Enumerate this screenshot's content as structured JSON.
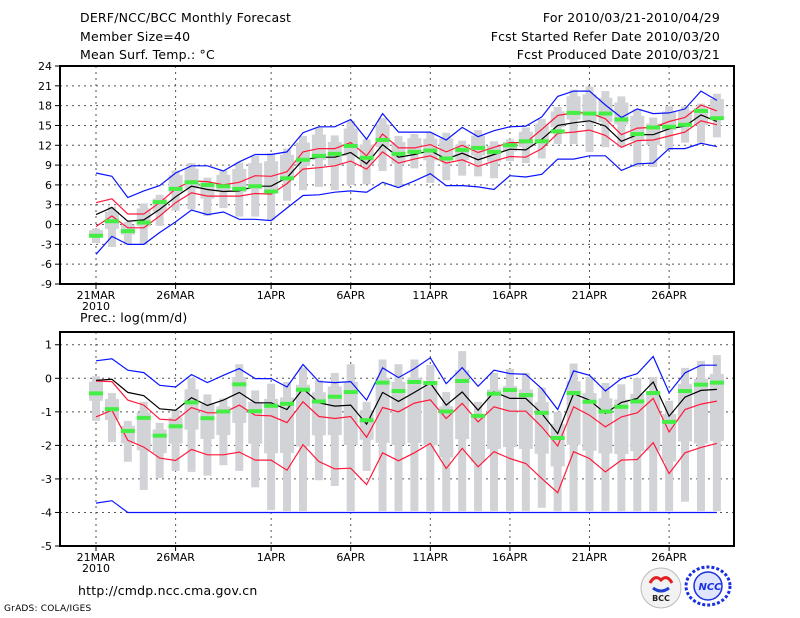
{
  "header": {
    "title": "DERF/NCC/BCC Monthly Forecast",
    "member_size": "Member Size=40",
    "variable": "Mean Surf. Temp.: °C",
    "period": "For 2010/03/21-2010/04/29",
    "start_date": "Fcst Started Refer Date 2010/03/20",
    "produced_date": "Fcst Produced Date 2010/03/21"
  },
  "footer": {
    "url": "http://cmdp.ncc.cma.gov.cn",
    "credit": "GrADS: COLA/IGES",
    "logo_bcc": "BCC",
    "logo_ncc": "NCC"
  },
  "colors": {
    "gray": "#d2d3d7",
    "red": "#ff1a3c",
    "blue": "#0a14ff",
    "black": "#000000",
    "green": "#44ee44"
  },
  "chart_data": [
    {
      "type": "line",
      "title": "Mean Surf. Temp.: °C",
      "ylim": [
        -9,
        24
      ],
      "yticks": [
        24,
        21,
        18,
        15,
        12,
        9,
        6,
        3,
        0,
        -3,
        -6,
        -9
      ],
      "x_ticks": [
        {
          "day": 0,
          "label": "21MAR",
          "sub": "2010"
        },
        {
          "day": 5,
          "label": "26MAR"
        },
        {
          "day": 11,
          "label": "1APR"
        },
        {
          "day": 16,
          "label": "6APR"
        },
        {
          "day": 21,
          "label": "11APR"
        },
        {
          "day": 26,
          "label": "16APR"
        },
        {
          "day": 31,
          "label": "21APR"
        },
        {
          "day": 36,
          "label": "26APR"
        }
      ],
      "days": 40,
      "grid": true,
      "series": {
        "ensemble_mean": [
          1.5,
          2.6,
          0.5,
          0.7,
          2.3,
          4.2,
          5.8,
          5.3,
          5.0,
          5.1,
          5.8,
          5.8,
          7.1,
          9.8,
          10.2,
          10.2,
          10.9,
          9.2,
          12.1,
          10.2,
          10.6,
          11.2,
          9.9,
          10.8,
          9.8,
          10.6,
          11.4,
          11.3,
          12.9,
          15.0,
          15.4,
          15.7,
          14.9,
          12.6,
          13.6,
          13.6,
          14.5,
          14.9,
          16.6,
          15.6
        ],
        "red_upper": [
          3.3,
          3.9,
          1.6,
          1.6,
          3.3,
          5.4,
          6.6,
          6.5,
          6.0,
          6.4,
          7.4,
          7.3,
          8.0,
          11.0,
          11.5,
          11.5,
          12.4,
          10.4,
          13.7,
          11.6,
          11.6,
          12.1,
          11.0,
          12.0,
          10.9,
          11.7,
          12.4,
          12.4,
          14.4,
          16.5,
          16.9,
          16.9,
          16.0,
          13.6,
          14.6,
          14.7,
          15.6,
          16.2,
          18.1,
          17.2
        ],
        "red_lower": [
          -0.3,
          1.3,
          -0.5,
          -0.5,
          1.3,
          3.3,
          4.8,
          4.3,
          4.3,
          4.3,
          4.7,
          4.6,
          6.2,
          8.4,
          8.6,
          8.9,
          9.6,
          8.4,
          11.0,
          9.3,
          9.9,
          10.4,
          9.3,
          9.8,
          8.8,
          9.6,
          10.3,
          10.2,
          11.5,
          13.8,
          14.0,
          14.3,
          13.5,
          11.7,
          12.7,
          12.8,
          13.4,
          14.0,
          15.7,
          15.1
        ],
        "blue_upper": [
          7.8,
          7.3,
          4.1,
          5.1,
          5.9,
          7.8,
          8.9,
          8.9,
          8.1,
          9.5,
          10.6,
          10.6,
          11.0,
          13.9,
          14.8,
          14.8,
          15.9,
          12.9,
          16.8,
          14.0,
          14.0,
          14.0,
          12.8,
          14.7,
          13.3,
          14.2,
          14.8,
          14.9,
          16.3,
          19.4,
          20.2,
          20.2,
          18.1,
          16.2,
          17.5,
          16.8,
          16.9,
          17.5,
          20.2,
          18.8
        ],
        "blue_lower": [
          -4.5,
          -1.8,
          -3.0,
          -3.0,
          -1.2,
          0.4,
          2.2,
          1.5,
          1.9,
          0.8,
          0.8,
          0.6,
          2.5,
          4.4,
          4.5,
          4.9,
          5.1,
          4.9,
          6.4,
          5.6,
          6.6,
          7.7,
          5.9,
          5.9,
          5.7,
          5.3,
          7.4,
          7.2,
          7.6,
          9.9,
          9.9,
          10.4,
          10.4,
          8.2,
          9.2,
          9.3,
          11.5,
          11.5,
          12.3,
          11.8
        ],
        "green_marker": [
          -1.7,
          0.5,
          -1.0,
          0.3,
          3.4,
          5.4,
          6.4,
          6.0,
          5.8,
          5.4,
          5.8,
          5.0,
          7.0,
          9.8,
          10.4,
          10.7,
          11.9,
          10.1,
          12.8,
          10.7,
          11.0,
          11.2,
          10.0,
          11.3,
          11.6,
          11.0,
          12.0,
          12.6,
          12.6,
          14.1,
          16.9,
          16.8,
          16.8,
          15.9,
          13.7,
          14.7,
          14.8,
          15.1,
          17.2,
          16.1
        ],
        "range_max": [
          -0.6,
          2.7,
          0.4,
          3.2,
          4.5,
          8.2,
          9.3,
          7.1,
          8.2,
          9.4,
          10.4,
          10.8,
          11.5,
          13.4,
          14.7,
          13.5,
          15.7,
          12.9,
          16.1,
          13.4,
          13.7,
          13.9,
          13.9,
          12.7,
          14.3,
          12.6,
          12.9,
          14.7,
          16.0,
          17.8,
          20.4,
          20.9,
          20.2,
          19.4,
          17.5,
          16.2,
          17.9,
          17.9,
          18.3,
          19.8
        ],
        "range_min": [
          -2.8,
          -3.4,
          -3.1,
          -3.1,
          -0.2,
          2.1,
          2.3,
          1.3,
          2.5,
          1.2,
          1.2,
          0.6,
          3.6,
          5.2,
          5.7,
          5.2,
          6.0,
          6.1,
          8.1,
          5.8,
          8.5,
          6.3,
          6.7,
          7.4,
          7.3,
          7.0,
          9.6,
          9.3,
          10.0,
          12.2,
          12.2,
          11.0,
          11.7,
          11.7,
          8.7,
          8.7,
          11.3,
          12.4,
          12.4,
          13.2
        ]
      }
    },
    {
      "type": "line",
      "title": "Prec.: log(mm/d)",
      "ylim": [
        -5,
        1.4
      ],
      "yticks": [
        1,
        0,
        -1,
        -2,
        -3,
        -4,
        -5
      ],
      "x_ticks": [
        {
          "day": 0,
          "label": "21MAR",
          "sub": "2010"
        },
        {
          "day": 5,
          "label": "26MAR"
        },
        {
          "day": 11,
          "label": "1APR"
        },
        {
          "day": 16,
          "label": "6APR"
        },
        {
          "day": 21,
          "label": "11APR"
        },
        {
          "day": 26,
          "label": "16APR"
        },
        {
          "day": 31,
          "label": "21APR"
        },
        {
          "day": 36,
          "label": "26APR"
        }
      ],
      "days": 40,
      "grid": true,
      "series": {
        "ensemble_mean": [
          -0.06,
          -0.03,
          -0.42,
          -0.52,
          -0.91,
          -0.95,
          -0.58,
          -0.81,
          -0.65,
          -0.42,
          -0.73,
          -0.73,
          -0.93,
          -0.31,
          -0.73,
          -0.83,
          -0.8,
          -1.37,
          -0.42,
          -0.69,
          -0.42,
          -0.14,
          -0.8,
          -0.41,
          -0.95,
          -0.41,
          -0.6,
          -0.6,
          -1.05,
          -1.65,
          -0.46,
          -0.65,
          -1.05,
          -0.72,
          -0.6,
          -0.11,
          -1.13,
          -0.56,
          -0.36,
          -0.33
        ],
        "red_upper": [
          -0.08,
          -0.1,
          -0.65,
          -0.8,
          -1.22,
          -1.25,
          -0.87,
          -1.03,
          -1.03,
          -0.8,
          -1.1,
          -1.12,
          -1.32,
          -0.7,
          -1.14,
          -1.2,
          -1.14,
          -1.76,
          -0.87,
          -1.0,
          -0.74,
          -0.64,
          -1.2,
          -0.75,
          -1.3,
          -0.85,
          -0.98,
          -0.98,
          -1.45,
          -2.02,
          -0.85,
          -1.1,
          -1.45,
          -1.15,
          -1.03,
          -0.6,
          -1.6,
          -0.93,
          -0.77,
          -0.68
        ],
        "red_lower": [
          -1.15,
          -0.95,
          -1.85,
          -2.05,
          -2.38,
          -2.45,
          -2.12,
          -2.28,
          -2.28,
          -2.2,
          -2.44,
          -2.44,
          -2.74,
          -1.98,
          -2.48,
          -2.7,
          -2.68,
          -3.17,
          -2.22,
          -2.46,
          -2.22,
          -1.94,
          -2.69,
          -2.09,
          -2.64,
          -2.19,
          -2.39,
          -2.54,
          -2.99,
          -3.41,
          -2.19,
          -2.39,
          -2.79,
          -2.44,
          -2.42,
          -1.92,
          -2.84,
          -2.22,
          -2.06,
          -1.94
        ],
        "blue_upper": [
          0.52,
          0.58,
          0.24,
          0.17,
          -0.21,
          -0.26,
          0.11,
          -0.13,
          0.09,
          0.29,
          -0.01,
          -0.01,
          -0.26,
          0.41,
          -0.1,
          -0.13,
          -0.1,
          -0.65,
          0.31,
          0.02,
          0.29,
          0.61,
          -0.16,
          0.32,
          -0.24,
          0.24,
          0.14,
          0.12,
          -0.31,
          -0.93,
          0.22,
          0.09,
          -0.38,
          -0.01,
          0.14,
          0.65,
          -0.43,
          0.16,
          0.39,
          0.39
        ],
        "blue_lower": [
          -3.72,
          -3.65,
          -4,
          -4,
          -4,
          -4,
          -4,
          -4,
          -4,
          -4,
          -4,
          -4,
          -4,
          -4,
          -4,
          -4,
          -4,
          -4,
          -4,
          -4,
          -4,
          -4,
          -4,
          -4,
          -4,
          -4,
          -4,
          -4,
          -4,
          -4,
          -4,
          -4,
          -4,
          -4,
          -4,
          -4,
          -4,
          -4,
          -4,
          -4
        ],
        "green_marker": [
          -0.45,
          -0.92,
          -1.57,
          -1.18,
          -1.71,
          -1.43,
          -0.72,
          -1.19,
          -0.99,
          -0.18,
          -0.98,
          -0.82,
          -0.76,
          -0.34,
          -0.69,
          -0.55,
          -0.41,
          -1.25,
          -0.13,
          -0.38,
          -0.11,
          -0.14,
          -0.99,
          -0.08,
          -1.12,
          -0.46,
          -0.35,
          -0.5,
          -1.03,
          -1.78,
          -0.44,
          -0.7,
          -0.99,
          -0.85,
          -0.69,
          -0.44,
          -1.3,
          -0.38,
          -0.19,
          -0.13
        ],
        "range_max": [
          0.06,
          -0.44,
          -1.27,
          -0.7,
          -1.33,
          -0.95,
          0.01,
          -0.48,
          -0.6,
          0.42,
          -0.36,
          -0.16,
          -0.11,
          0.32,
          -0.06,
          0.16,
          0.42,
          -0.7,
          0.56,
          0.42,
          0.56,
          0.4,
          -0.41,
          0.81,
          -0.7,
          0.16,
          0.28,
          0.16,
          -0.28,
          -1.0,
          0.44,
          0.04,
          -0.14,
          -0.18,
          0.01,
          0.04,
          -0.67,
          0.31,
          0.52,
          0.69
        ],
        "range_min": [
          -1.27,
          -1.9,
          -2.49,
          -3.33,
          -2.97,
          -2.76,
          -2.79,
          -2.9,
          -2.59,
          -2.76,
          -3.25,
          -3.93,
          -3.96,
          -3.96,
          -3.04,
          -3.21,
          -3.96,
          -2.76,
          -3.96,
          -3.96,
          -3.96,
          -3.96,
          -3.96,
          -3.96,
          -3.96,
          -3.96,
          -3.96,
          -3.96,
          -3.86,
          -3.96,
          -3.96,
          -3.96,
          -3.96,
          -3.96,
          -3.96,
          -3.96,
          -3.96,
          -3.68,
          -3.96,
          -3.96
        ]
      }
    }
  ]
}
